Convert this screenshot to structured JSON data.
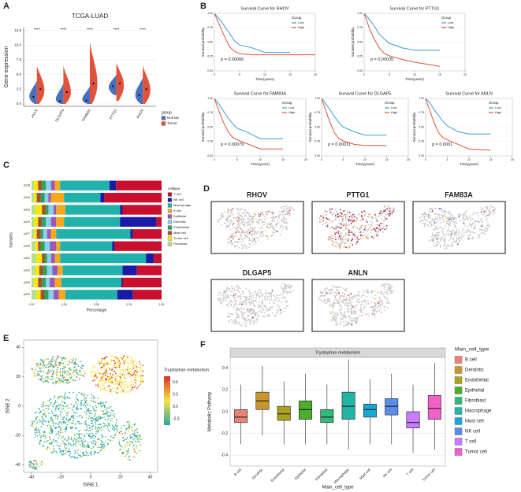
{
  "panel_labels": [
    "A",
    "B",
    "C",
    "D",
    "E",
    "F"
  ],
  "tsne_titles": [
    "RHOV",
    "PTTG1",
    "FAM83A",
    "DLGAP5",
    "ANLN"
  ],
  "tsne_plot": {
    "xlabel": "tSNE 1",
    "ylabel": "tSNE 2",
    "xlim": [
      -45,
      45
    ],
    "ylim": [
      -45,
      45
    ],
    "xticks": [
      -40,
      -20,
      0,
      20,
      40
    ],
    "yticks": [
      -40,
      -20,
      0,
      20,
      40
    ],
    "colorbar": {
      "title": "Tryptophan metabolism",
      "lim": [
        -0.45,
        0.75
      ],
      "ticks": [
        0.6,
        0.3,
        {
          "value": 0,
          "label": "0.0"
        },
        -0.3
      ],
      "colors": [
        "#2aa6a6",
        "#f5e342",
        "#d7301f"
      ]
    }
  },
  "chart_data": [
    {
      "type": "violin",
      "title": "TCGA-LUAD",
      "ylabel": "Gene expression",
      "categories": [
        "ANLN",
        "DLGAP5",
        "FAM83A",
        "PTTG1",
        "RHOV"
      ],
      "significance": [
        "****",
        "****",
        "****",
        "****",
        "****"
      ],
      "legend_title": "group",
      "ylim": [
        -0.4,
        13
      ],
      "yticks": [
        {
          "value": 0,
          "label": "0.0"
        },
        2.5,
        {
          "value": 5,
          "label": "5.0"
        },
        7.5,
        {
          "value": 10,
          "label": "10.0"
        },
        12.5
      ],
      "series": [
        {
          "name": "Normal",
          "color": "#4a6fbf",
          "values": [
            1.2,
            0.5,
            0.6,
            3.0,
            1.5
          ],
          "mins": [
            0,
            0,
            0,
            1.5,
            0
          ],
          "maxs": [
            4,
            3.5,
            3,
            5,
            4.5
          ]
        },
        {
          "name": "Tumor",
          "color": "#e0533a",
          "values": [
            2.5,
            2.0,
            3.5,
            3.5,
            2.5
          ],
          "mins": [
            0,
            0,
            0,
            0.5,
            0
          ],
          "maxs": [
            6.5,
            6.5,
            10.5,
            7,
            6.5
          ]
        }
      ]
    },
    {
      "type": "line",
      "title": "Survival Curve for RHOV",
      "p_label": "p = 0.00066",
      "xlabel": "Time(years)",
      "ylabel": "Survival probability",
      "legend_title": "Group",
      "x": [
        0,
        1,
        2,
        3,
        4,
        5,
        7.5,
        10,
        15,
        20
      ],
      "xlim": [
        0,
        20
      ],
      "ylim": [
        0,
        1
      ],
      "xticks": [
        0,
        5,
        10,
        15,
        20
      ],
      "yticks": [
        {
          "value": 0,
          "label": "0.00"
        },
        {
          "value": 0.25,
          "label": "0.25"
        },
        {
          "value": 0.5,
          "label": "0.50"
        },
        {
          "value": 0.75,
          "label": "0.75"
        },
        {
          "value": 1,
          "label": "1.00"
        }
      ],
      "series": [
        {
          "name": "Low",
          "color": "#3f9ad6",
          "values": [
            1,
            0.9,
            0.78,
            0.65,
            0.52,
            0.45,
            0.4,
            0.32,
            0.32,
            null
          ]
        },
        {
          "name": "High",
          "color": "#e0533a",
          "values": [
            1,
            0.8,
            0.6,
            0.42,
            0.34,
            0.3,
            0.28,
            0.28,
            0.28,
            0.28
          ]
        }
      ]
    },
    {
      "type": "line",
      "title": "Survival Curve for PTTG1",
      "p_label": "p = 0.00035",
      "xlabel": "Time(years)",
      "ylabel": "Survival probability",
      "legend_title": "Group",
      "x": [
        0,
        1,
        2,
        3,
        4,
        5,
        7.5,
        10,
        15,
        20
      ],
      "xlim": [
        0,
        20
      ],
      "ylim": [
        0,
        1
      ],
      "xticks": [
        0,
        5,
        10,
        15,
        20
      ],
      "yticks": [
        {
          "value": 0,
          "label": "0.00"
        },
        {
          "value": 0.25,
          "label": "0.25"
        },
        {
          "value": 0.5,
          "label": "0.50"
        },
        {
          "value": 0.75,
          "label": "0.75"
        },
        {
          "value": 1,
          "label": "1.00"
        }
      ],
      "series": [
        {
          "name": "Low",
          "color": "#3f9ad6",
          "values": [
            1,
            0.9,
            0.78,
            0.64,
            0.55,
            0.48,
            0.4,
            0.36,
            0.36,
            null
          ]
        },
        {
          "name": "High",
          "color": "#e0533a",
          "values": [
            1,
            0.75,
            0.55,
            0.4,
            0.3,
            0.26,
            0.2,
            0.15,
            0.08,
            null
          ]
        }
      ]
    },
    {
      "type": "line",
      "title": "Survival Curve for FAM83A",
      "p_label": "p = 0.00079",
      "xlabel": "Time(years)",
      "ylabel": "Survival probability",
      "legend_title": "Group",
      "x": [
        0,
        1,
        2,
        3,
        4,
        5,
        7.5,
        10,
        15,
        20
      ],
      "xlim": [
        0,
        20
      ],
      "ylim": [
        0,
        1
      ],
      "xticks": [
        0,
        5,
        10,
        15,
        20
      ],
      "yticks": [
        {
          "value": 0,
          "label": "0.00"
        },
        {
          "value": 0.25,
          "label": "0.25"
        },
        {
          "value": 0.5,
          "label": "0.50"
        },
        {
          "value": 0.75,
          "label": "0.75"
        },
        {
          "value": 1,
          "label": "1.00"
        }
      ],
      "series": [
        {
          "name": "Low",
          "color": "#3f9ad6",
          "values": [
            1,
            0.9,
            0.78,
            0.66,
            0.56,
            0.48,
            0.4,
            0.3,
            0.3,
            null
          ]
        },
        {
          "name": "High",
          "color": "#e0533a",
          "values": [
            1,
            0.78,
            0.58,
            0.42,
            0.32,
            0.28,
            0.2,
            0.12,
            0.12,
            null
          ]
        }
      ]
    },
    {
      "type": "line",
      "title": "Survival Curve for DLGAP5",
      "p_label": "p = 0.00011",
      "xlabel": "Time(years)",
      "ylabel": "Survival probability",
      "legend_title": "Group",
      "x": [
        0,
        1,
        2,
        3,
        4,
        5,
        7.5,
        10,
        15,
        20
      ],
      "xlim": [
        0,
        20
      ],
      "ylim": [
        0,
        1
      ],
      "xticks": [
        0,
        5,
        10,
        15,
        20
      ],
      "yticks": [
        {
          "value": 0,
          "label": "0.00"
        },
        {
          "value": 0.25,
          "label": "0.25"
        },
        {
          "value": 0.5,
          "label": "0.50"
        },
        {
          "value": 0.75,
          "label": "0.75"
        },
        {
          "value": 1,
          "label": "1.00"
        }
      ],
      "series": [
        {
          "name": "Low",
          "color": "#3f9ad6",
          "values": [
            1,
            0.9,
            0.8,
            0.68,
            0.58,
            0.5,
            0.42,
            0.36,
            0.36,
            null
          ]
        },
        {
          "name": "High",
          "color": "#e0533a",
          "values": [
            1,
            0.78,
            0.57,
            0.4,
            0.3,
            0.26,
            0.2,
            0.18,
            0.18,
            null
          ]
        }
      ]
    },
    {
      "type": "line",
      "title": "Survival Curve for ANLN",
      "p_label": "p = 0.0001",
      "xlabel": "Time(years)",
      "ylabel": "Survival probability",
      "legend_title": "Group",
      "x": [
        0,
        1,
        2,
        3,
        4,
        5,
        7.5,
        10,
        15,
        20
      ],
      "xlim": [
        0,
        20
      ],
      "ylim": [
        0,
        1
      ],
      "xticks": [
        0,
        5,
        10,
        15,
        20
      ],
      "yticks": [
        {
          "value": 0,
          "label": "0.00"
        },
        {
          "value": 0.25,
          "label": "0.25"
        },
        {
          "value": 0.5,
          "label": "0.50"
        },
        {
          "value": 0.75,
          "label": "0.75"
        },
        {
          "value": 1,
          "label": "1.00"
        }
      ],
      "series": [
        {
          "name": "Low",
          "color": "#3f9ad6",
          "values": [
            1,
            0.92,
            0.8,
            0.7,
            0.6,
            0.52,
            0.42,
            0.38,
            0.38,
            null
          ]
        },
        {
          "name": "High",
          "color": "#e0533a",
          "values": [
            1,
            0.78,
            0.57,
            0.4,
            0.32,
            0.28,
            0.2,
            0.12,
            0.1,
            null
          ]
        }
      ]
    },
    {
      "type": "stacked_bar_h",
      "xlabel": "Percentage",
      "ylabel": "Samples",
      "legend_title": "celltype",
      "categories": [
        "p018",
        "p019",
        "p023",
        "p024",
        "p027",
        "p030",
        "p031",
        "p032",
        "p033",
        "p034"
      ],
      "xlim": [
        0,
        1
      ],
      "xticks": [
        {
          "value": 0,
          "label": "0.00"
        },
        0.25,
        {
          "value": 0.5,
          "label": "0.50"
        },
        0.75,
        {
          "value": 1,
          "label": "1.00"
        }
      ],
      "series": [
        {
          "name": "T cell",
          "color": "#c8102e",
          "values": [
            0.35,
            0.44,
            0.3,
            0.04,
            0.22,
            0.36,
            0.06,
            0.19,
            0.3,
            0.22
          ]
        },
        {
          "name": "NK cell",
          "color": "#1a1aa6",
          "values": [
            0.05,
            0.03,
            0.02,
            0.28,
            0.02,
            0.02,
            0.06,
            0.11,
            0.01,
            0.12
          ]
        },
        {
          "name": "Macrophage",
          "color": "#20b2aa",
          "values": [
            0.38,
            0.28,
            0.42,
            0.43,
            0.57,
            0.4,
            0.66,
            0.46,
            0.46,
            0.4
          ]
        },
        {
          "name": "B cell",
          "color": "#f7a81b",
          "values": [
            0.04,
            0.1,
            0.07,
            0.06,
            0.04,
            0.03,
            0.04,
            0.04,
            0.05,
            0.05
          ]
        },
        {
          "name": "Epithelial",
          "color": "#9b59b6",
          "values": [
            0.03,
            0.02,
            0.02,
            0.04,
            0.03,
            0.05,
            0.03,
            0.04,
            0.04,
            0.04
          ]
        },
        {
          "name": "Dendritic",
          "color": "#87ceeb",
          "values": [
            0.04,
            0.03,
            0.04,
            0.04,
            0.03,
            0.04,
            0.03,
            0.04,
            0.03,
            0.04
          ]
        },
        {
          "name": "Endothelial",
          "color": "#2ca25f",
          "values": [
            0.03,
            0.03,
            0.02,
            0.03,
            0.02,
            0.03,
            0.02,
            0.03,
            0.03,
            0.03
          ]
        },
        {
          "name": "Mast cell",
          "color": "#a0522d",
          "values": [
            0.03,
            0.03,
            0.03,
            0.03,
            0.03,
            0.02,
            0.02,
            0.03,
            0.03,
            0.03
          ]
        },
        {
          "name": "Tumor cell",
          "color": "#ffe600",
          "values": [
            0.03,
            0.02,
            0.05,
            0.03,
            0.02,
            0.02,
            0.04,
            0.03,
            0.03,
            0.03
          ]
        },
        {
          "name": "Fibroblast",
          "color": "#b5e08a",
          "values": [
            0.02,
            0.02,
            0.03,
            0.02,
            0.02,
            0.03,
            0.04,
            0.03,
            0.02,
            0.04
          ]
        }
      ]
    },
    {
      "type": "box",
      "strip_title": "Tryptophan metabolism",
      "ylabel": "Metabolic Pathway",
      "xlabel": "Main_cell_type",
      "legend_title": "Main_cell_type",
      "categories": [
        "B cell",
        "Dendritic",
        "Endothelial",
        "Epithelial",
        "Fibroblast",
        "Macrophage",
        "Mast cell",
        "NK cell",
        "T cell",
        "Tumor cell"
      ],
      "colors": [
        "#e8837a",
        "#c8962e",
        "#a8a21f",
        "#4cae2c",
        "#35b779",
        "#22b5a5",
        "#1aa7d6",
        "#5b8de8",
        "#c77cff",
        "#f062c8"
      ],
      "min": [
        -0.3,
        -0.22,
        -0.3,
        -0.3,
        -0.3,
        -0.35,
        -0.3,
        -0.3,
        -0.38,
        -0.35
      ],
      "q1": [
        -0.1,
        0.02,
        -0.08,
        -0.07,
        -0.1,
        -0.07,
        -0.05,
        -0.03,
        -0.15,
        -0.07
      ],
      "median": [
        -0.05,
        0.1,
        -0.02,
        0.02,
        -0.05,
        0.05,
        0.02,
        0.05,
        -0.1,
        0.03
      ],
      "q3": [
        0.02,
        0.18,
        0.05,
        0.1,
        0.02,
        0.18,
        0.07,
        0.12,
        0.0,
        0.15
      ],
      "max": [
        0.25,
        0.42,
        0.28,
        0.35,
        0.25,
        0.48,
        0.3,
        0.35,
        0.25,
        0.45
      ],
      "ylim": [
        -0.5,
        0.5
      ],
      "yticks": [
        -0.4,
        -0.2,
        {
          "value": 0,
          "label": "0.0"
        },
        0.2,
        0.4
      ]
    }
  ]
}
